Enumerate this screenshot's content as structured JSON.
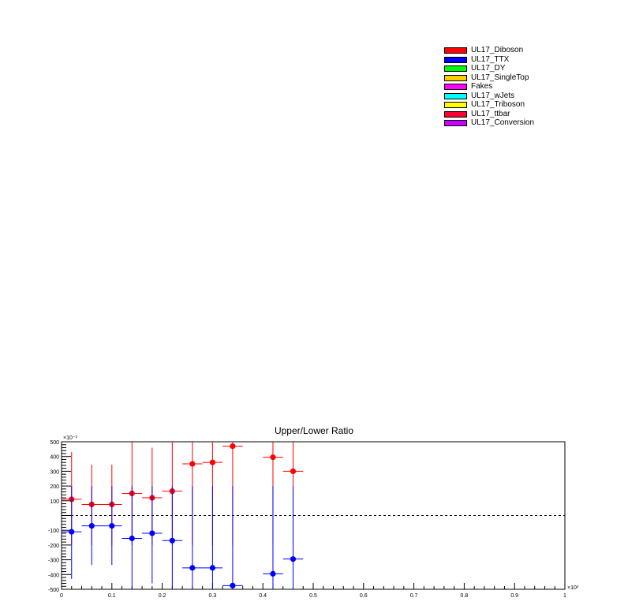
{
  "legend": [
    {
      "label": "UL17_Diboson",
      "color": "#ff0000"
    },
    {
      "label": "UL17_TTX",
      "color": "#0000ff"
    },
    {
      "label": "UL17_DY",
      "color": "#00ff00"
    },
    {
      "label": "UL17_SingleTop",
      "color": "#ffcc00"
    },
    {
      "label": "Fakes",
      "color": "#ff00ff"
    },
    {
      "label": "UL17_wJets",
      "color": "#00ffff"
    },
    {
      "label": "UL17_Triboson",
      "color": "#ffff00"
    },
    {
      "label": "UL17_ttbar",
      "color": "#ff0033"
    },
    {
      "label": "UL17_Conversion",
      "color": "#cc00ff"
    }
  ],
  "chart_data": {
    "type": "scatter",
    "title": "Upper/Lower Ratio",
    "xlabel": "",
    "ylabel": "",
    "x_multiplier": "×10³",
    "y_multiplier": "×10⁻³",
    "xlim": [
      0,
      1
    ],
    "ylim": [
      -500,
      500
    ],
    "x_ticks": [
      "0",
      "0.1",
      "0.2",
      "0.3",
      "0.4",
      "0.5",
      "0.6",
      "0.7",
      "0.8",
      "0.9",
      "1"
    ],
    "y_ticks": [
      "500",
      "400",
      "300",
      "200",
      "100",
      "-100",
      "-200",
      "-300",
      "-400",
      "-500"
    ],
    "y_tick_values": [
      500,
      400,
      300,
      200,
      100,
      -100,
      -200,
      -300,
      -400,
      -500
    ],
    "reference_line": 0,
    "grid": false,
    "series": [
      {
        "color": "#ff0000",
        "points": [
          {
            "x": 0.02,
            "y": 110,
            "xerr": 0.02,
            "ylo": -200,
            "yhi": 430
          },
          {
            "x": 0.06,
            "y": 75,
            "xerr": 0.02,
            "ylo": -200,
            "yhi": 345
          },
          {
            "x": 0.1,
            "y": 75,
            "xerr": 0.02,
            "ylo": -200,
            "yhi": 345
          },
          {
            "x": 0.14,
            "y": 150,
            "xerr": 0.02,
            "ylo": -200,
            "yhi": 500
          },
          {
            "x": 0.18,
            "y": 120,
            "xerr": 0.02,
            "ylo": -200,
            "yhi": 460
          },
          {
            "x": 0.22,
            "y": 165,
            "xerr": 0.02,
            "ylo": -200,
            "yhi": 500
          },
          {
            "x": 0.26,
            "y": 350,
            "xerr": 0.02,
            "ylo": -200,
            "yhi": 500
          },
          {
            "x": 0.3,
            "y": 360,
            "xerr": 0.02,
            "ylo": -200,
            "yhi": 500
          },
          {
            "x": 0.34,
            "y": 470,
            "xerr": 0.02,
            "ylo": -200,
            "yhi": 500
          },
          {
            "x": 0.42,
            "y": 395,
            "xerr": 0.02,
            "ylo": -200,
            "yhi": 500
          },
          {
            "x": 0.46,
            "y": 300,
            "xerr": 0.02,
            "ylo": -200,
            "yhi": 500
          }
        ]
      },
      {
        "color": "#0000ff",
        "points": [
          {
            "x": 0.02,
            "y": -110,
            "xerr": 0.02,
            "ylo": -430,
            "yhi": 200
          },
          {
            "x": 0.06,
            "y": -70,
            "xerr": 0.02,
            "ylo": -335,
            "yhi": 200
          },
          {
            "x": 0.1,
            "y": -70,
            "xerr": 0.02,
            "ylo": -335,
            "yhi": 200
          },
          {
            "x": 0.14,
            "y": -155,
            "xerr": 0.02,
            "ylo": -500,
            "yhi": 200
          },
          {
            "x": 0.18,
            "y": -120,
            "xerr": 0.02,
            "ylo": -460,
            "yhi": 200
          },
          {
            "x": 0.22,
            "y": -170,
            "xerr": 0.02,
            "ylo": -500,
            "yhi": 200
          },
          {
            "x": 0.26,
            "y": -355,
            "xerr": 0.02,
            "ylo": -500,
            "yhi": 200
          },
          {
            "x": 0.3,
            "y": -355,
            "xerr": 0.02,
            "ylo": -500,
            "yhi": 200
          },
          {
            "x": 0.34,
            "y": -475,
            "xerr": 0.02,
            "ylo": -500,
            "yhi": 200
          },
          {
            "x": 0.42,
            "y": -395,
            "xerr": 0.02,
            "ylo": -500,
            "yhi": 200
          },
          {
            "x": 0.46,
            "y": -295,
            "xerr": 0.02,
            "ylo": -500,
            "yhi": 200
          }
        ]
      }
    ]
  }
}
